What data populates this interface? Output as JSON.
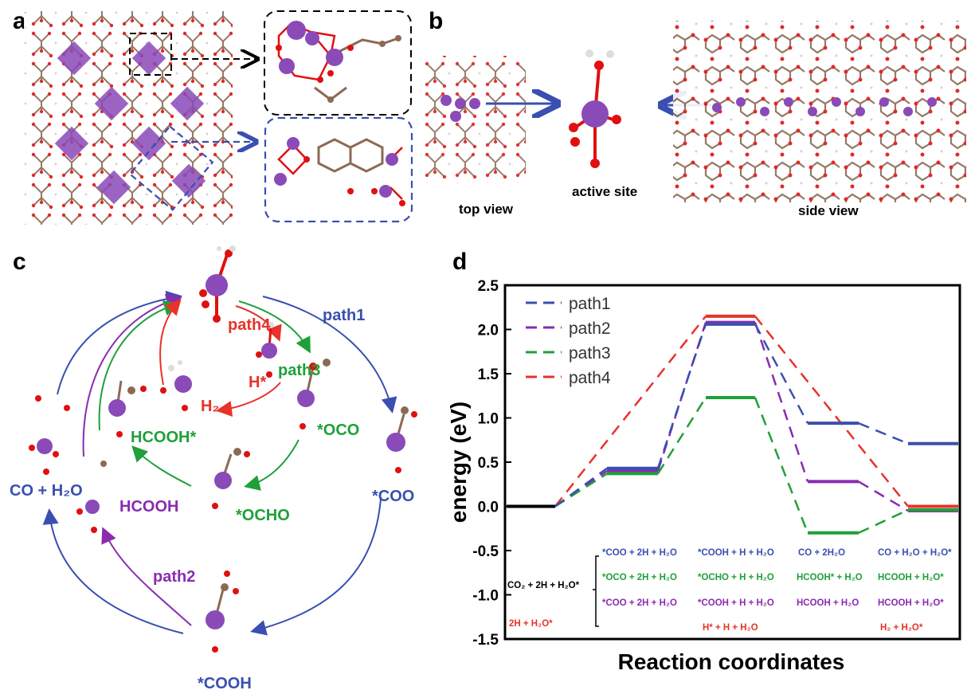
{
  "colors": {
    "path1": "#3a4fb0",
    "path2": "#8a2bb0",
    "path3": "#1fa03a",
    "path4": "#e8322a",
    "metal": "#8a4ab8",
    "oxygen": "#e01010",
    "carbon": "#8b6a55"
  },
  "panels": {
    "a": {
      "label": "a"
    },
    "b": {
      "label": "b",
      "top_view": "top view",
      "active_site": "active site",
      "side_view": "side view"
    },
    "c": {
      "label": "c",
      "path1": "path1",
      "path2": "path2",
      "path3": "path3",
      "path4": "path4",
      "h_star": "H*",
      "h2": "H₂",
      "oco": "*OCO",
      "ocho": "*OCHO",
      "hcooh_star": "HCOOH*",
      "coo": "*COO",
      "cooh": "*COOH",
      "hcooh": "HCOOH",
      "co_h2o": "CO + H₂O"
    },
    "d": {
      "label": "d"
    }
  },
  "chart_data": {
    "type": "line",
    "title": "",
    "xlabel": "Reaction coordinates",
    "ylabel": "energy (eV)",
    "ylim": [
      -1.5,
      2.5
    ],
    "yticks": [
      "-1.5",
      "-1.0",
      "-0.5",
      "0.0",
      "0.5",
      "1.0",
      "1.5",
      "2.0",
      "2.5"
    ],
    "ytick_values": [
      -1.5,
      -1.0,
      -0.5,
      0.0,
      0.5,
      1.0,
      1.5,
      2.0,
      2.5
    ],
    "legend_position": "top-left",
    "states": [
      0,
      1,
      2,
      3,
      4
    ],
    "series": [
      {
        "name": "path1",
        "values": [
          0.0,
          0.43,
          2.06,
          0.94,
          0.71
        ]
      },
      {
        "name": "path2",
        "values": [
          0.0,
          0.4,
          2.08,
          0.28,
          -0.05
        ]
      },
      {
        "name": "path3",
        "values": [
          0.0,
          0.37,
          1.23,
          -0.3,
          -0.04
        ]
      },
      {
        "name": "path4",
        "values": [
          0.0,
          null,
          2.15,
          null,
          0.0
        ]
      }
    ],
    "annotations": {
      "state0_main": "CO₂ + 2H + H₂O*",
      "state0_red": "2H + H₂O*",
      "s1_path1": "*COO + 2H + H₂O",
      "s1_path3": "*OCO + 2H + H₂O",
      "s1_path2": "*COO + 2H + H₂O",
      "s2_path1": "*COOH + H + H₂O",
      "s2_path3": "*OCHO + H + H₂O",
      "s2_path2": "*COOH + H + H₂O",
      "s2_red": "H* + H + H₂O",
      "s3_path1": "CO + 2H₂O",
      "s3_path3": "HCOOH* + H₂O",
      "s3_path2": "HCOOH + H₂O",
      "s4_path1": "CO + H₂O + H₂O*",
      "s4_path3": "HCOOH + H₂O*",
      "s4_path2": "HCOOH + H₂O*",
      "s4_red": "H₂ + H₂O*"
    }
  }
}
